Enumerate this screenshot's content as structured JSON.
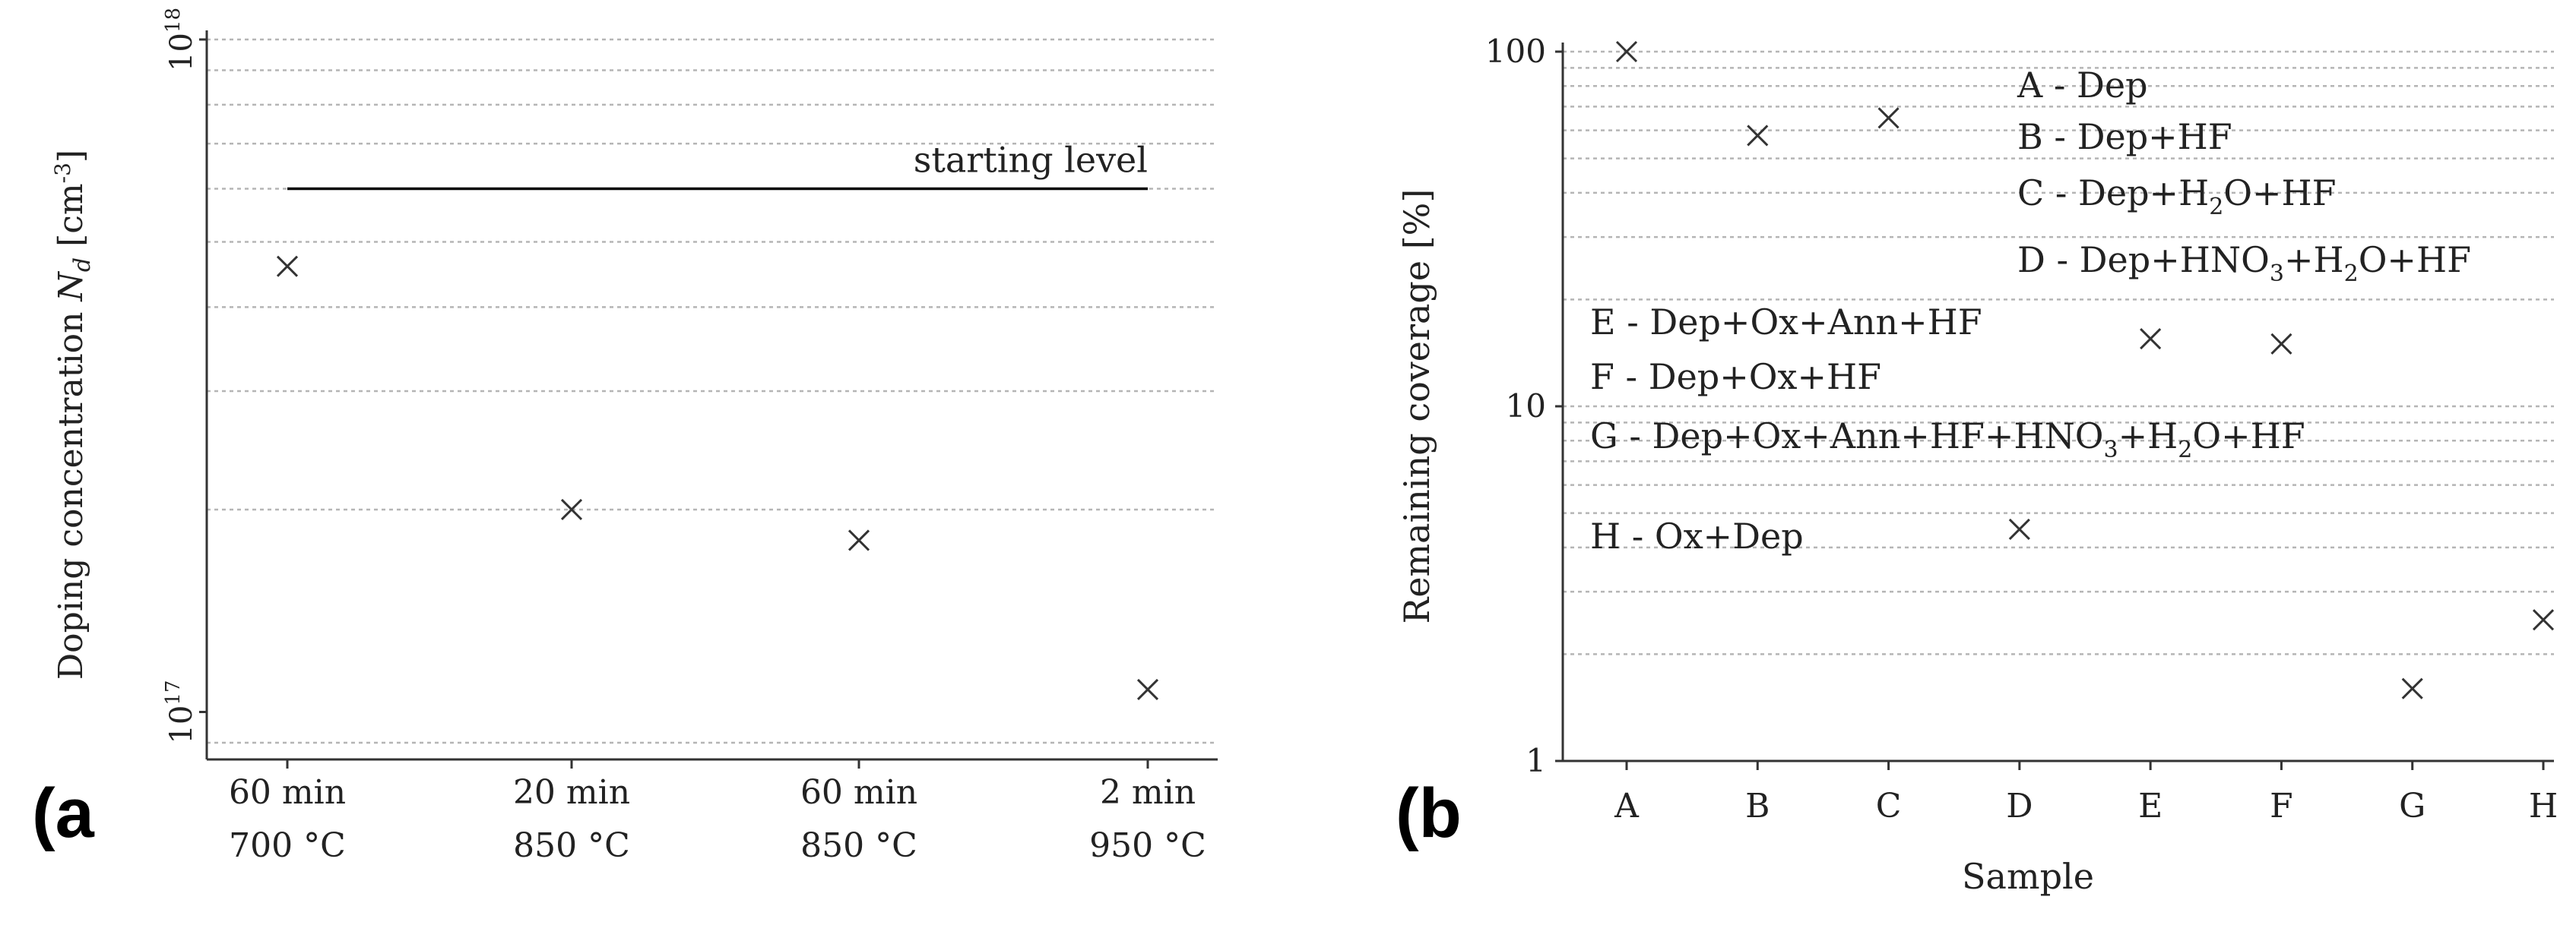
{
  "chart_data": [
    {
      "id": "a",
      "type": "scatter",
      "panel_label": "(a",
      "xlabel": "",
      "ylabel": "Doping concentration N_d [cm^-3]",
      "ylabel_parts": {
        "pre": "Doping concentration ",
        "sym": "N",
        "sub": "d",
        "mid": " [cm",
        "sup": "-3",
        "post": "]"
      },
      "yscale": "log",
      "ylim": [
        8.5e+16,
        1e+18
      ],
      "ytick_labels": [
        {
          "value": 1e+17,
          "base": "10",
          "exp": "17"
        },
        {
          "value": 1e+18,
          "base": "10",
          "exp": "18"
        }
      ],
      "categories": [
        {
          "line1": "60 min",
          "line2": "700 °C"
        },
        {
          "line1": "20 min",
          "line2": "850 °C"
        },
        {
          "line1": "60 min",
          "line2": "850 °C"
        },
        {
          "line1": "2 min",
          "line2": "950 °C"
        }
      ],
      "values": [
        4.6e+17,
        2e+17,
        1.8e+17,
        1.08e+17
      ],
      "reference_line": {
        "value": 6e+17,
        "label": "starting level"
      },
      "grid": true
    },
    {
      "id": "b",
      "type": "scatter",
      "panel_label": "(b",
      "xlabel": "Sample",
      "ylabel": "Remaining coverage [%]",
      "yscale": "log",
      "ylim": [
        1,
        100
      ],
      "ytick_labels": [
        {
          "value": 1,
          "label": "1"
        },
        {
          "value": 10,
          "label": "10"
        },
        {
          "value": 100,
          "label": "100"
        }
      ],
      "categories": [
        "A",
        "B",
        "C",
        "D",
        "E",
        "F",
        "G",
        "H"
      ],
      "values": [
        100,
        58,
        65,
        4.5,
        15.5,
        15,
        1.6,
        2.5
      ],
      "grid": true,
      "annotations": [
        {
          "parts": [
            {
              "t": "A - Dep"
            }
          ]
        },
        {
          "parts": [
            {
              "t": "B - Dep+HF"
            }
          ]
        },
        {
          "parts": [
            {
              "t": "C - Dep+H"
            },
            {
              "sub": "2"
            },
            {
              "t": "O+HF"
            }
          ]
        },
        {
          "parts": [
            {
              "t": "D - Dep+HNO"
            },
            {
              "sub": "3"
            },
            {
              "t": "+H"
            },
            {
              "sub": "2"
            },
            {
              "t": "O+HF"
            }
          ]
        },
        {
          "parts": [
            {
              "t": "E - Dep+Ox+Ann+HF"
            }
          ]
        },
        {
          "parts": [
            {
              "t": "F - Dep+Ox+HF"
            }
          ]
        },
        {
          "parts": [
            {
              "t": "G - Dep+Ox+Ann+HF+HNO"
            },
            {
              "sub": "3"
            },
            {
              "t": "+H"
            },
            {
              "sub": "2"
            },
            {
              "t": "O+HF"
            }
          ]
        },
        {
          "parts": [
            {
              "t": "H - Ox+Dep"
            }
          ]
        }
      ]
    }
  ]
}
